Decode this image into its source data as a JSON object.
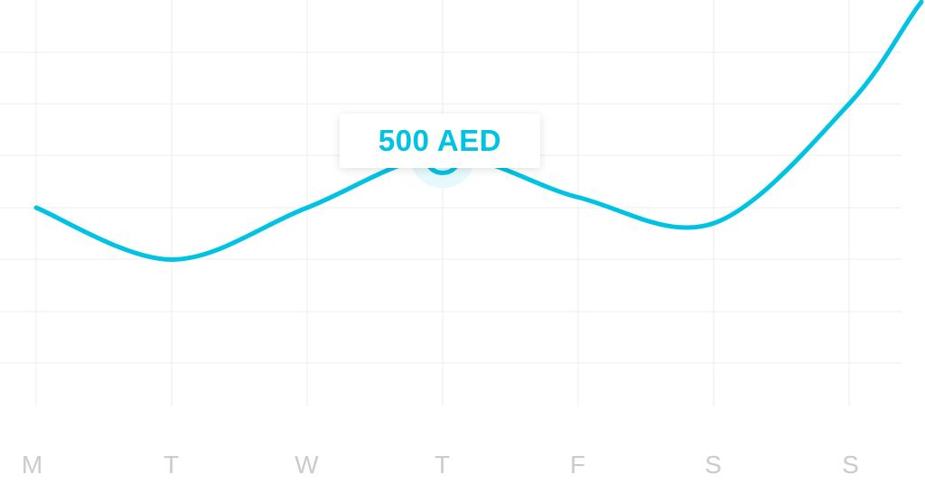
{
  "chart_data": {
    "type": "line",
    "categories": [
      "M",
      "T",
      "W",
      "T",
      "F",
      "S",
      "S"
    ],
    "values": [
      400,
      300,
      400,
      500,
      420,
      370,
      600
    ],
    "ylim": [
      0,
      800
    ],
    "grid": true,
    "highlight": {
      "index": 3,
      "label": "500 AED"
    }
  },
  "colors": {
    "line": "#00c3e3",
    "grid": "#ececec",
    "tick": "#c9cbcf",
    "marker_halo": "#e3f8fc"
  }
}
